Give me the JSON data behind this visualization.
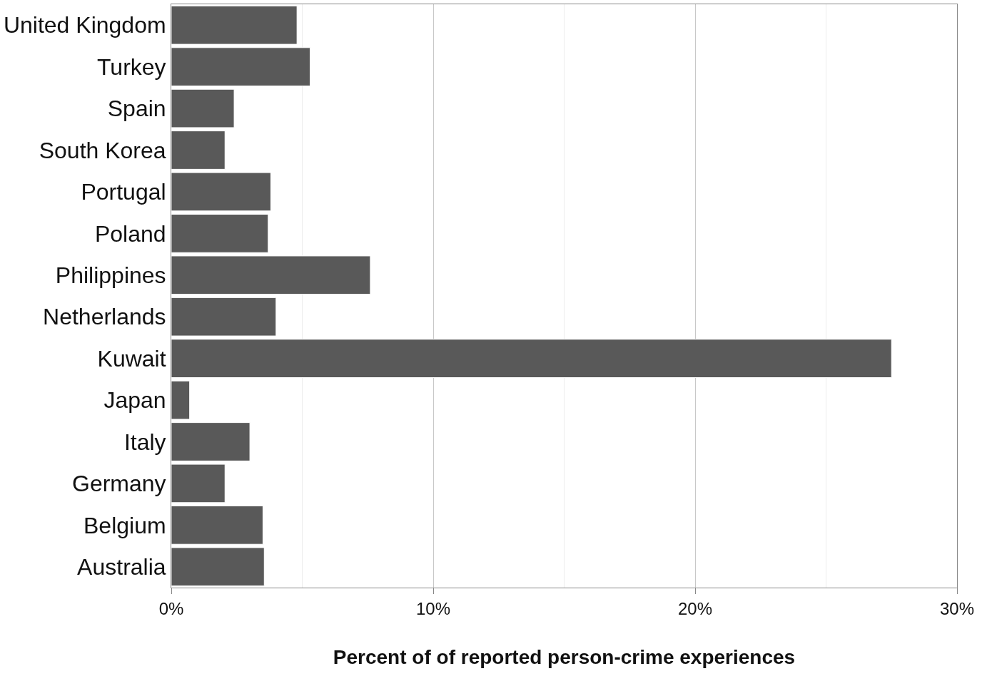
{
  "chart_data": {
    "type": "bar",
    "orientation": "horizontal",
    "xlabel": "Percent of of reported person-crime experiences",
    "categories": [
      "United Kingdom",
      "Turkey",
      "Spain",
      "South Korea",
      "Portugal",
      "Poland",
      "Philippines",
      "Netherlands",
      "Kuwait",
      "Japan",
      "Italy",
      "Germany",
      "Belgium",
      "Australia"
    ],
    "values": [
      4.8,
      5.3,
      2.4,
      2.05,
      3.8,
      3.7,
      7.6,
      4.0,
      27.5,
      0.7,
      3.0,
      2.05,
      3.5,
      3.55
    ],
    "color": "#595959",
    "xlim": [
      0,
      30
    ],
    "xticks": [
      {
        "value": 0,
        "label": "0%"
      },
      {
        "value": 10,
        "label": "10%"
      },
      {
        "value": 20,
        "label": "20%"
      },
      {
        "value": 30,
        "label": "30%"
      }
    ],
    "grid": "x"
  }
}
